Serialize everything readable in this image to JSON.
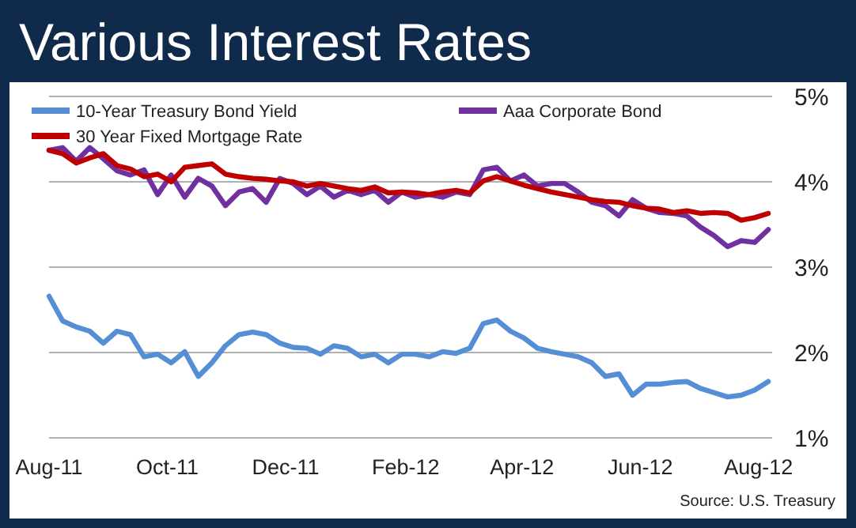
{
  "chart_data": {
    "type": "line",
    "title": "Various Interest Rates",
    "annotations": [
      "Source:  U.S. Treasury"
    ],
    "x": [
      "2011-08-01",
      "2011-08-08",
      "2011-08-15",
      "2011-08-22",
      "2011-08-29",
      "2011-09-05",
      "2011-09-12",
      "2011-09-19",
      "2011-09-26",
      "2011-10-03",
      "2011-10-10",
      "2011-10-17",
      "2011-10-24",
      "2011-10-31",
      "2011-11-07",
      "2011-11-14",
      "2011-11-21",
      "2011-11-28",
      "2011-12-05",
      "2011-12-12",
      "2011-12-19",
      "2011-12-26",
      "2012-01-02",
      "2012-01-09",
      "2012-01-16",
      "2012-01-23",
      "2012-01-30",
      "2012-02-06",
      "2012-02-13",
      "2012-02-20",
      "2012-02-27",
      "2012-03-05",
      "2012-03-12",
      "2012-03-19",
      "2012-03-26",
      "2012-04-02",
      "2012-04-09",
      "2012-04-16",
      "2012-04-23",
      "2012-04-30",
      "2012-05-07",
      "2012-05-14",
      "2012-05-21",
      "2012-05-28",
      "2012-06-04",
      "2012-06-11",
      "2012-06-18",
      "2012-06-25",
      "2012-07-02",
      "2012-07-09",
      "2012-07-16",
      "2012-07-23",
      "2012-07-30",
      "2012-08-06"
    ],
    "series": [
      {
        "name": "10-Year Treasury Bond Yield",
        "color": "#558ed5",
        "values": [
          2.66,
          2.37,
          2.3,
          2.25,
          2.11,
          2.25,
          2.21,
          1.95,
          1.98,
          1.88,
          2.01,
          1.72,
          1.88,
          2.08,
          2.21,
          2.24,
          2.21,
          2.11,
          2.06,
          2.05,
          1.98,
          2.08,
          2.05,
          1.95,
          1.98,
          1.88,
          1.98,
          1.98,
          1.95,
          2.01,
          1.99,
          2.05,
          2.34,
          2.38,
          2.25,
          2.17,
          2.05,
          2.01,
          1.98,
          1.95,
          1.88,
          1.72,
          1.75,
          1.5,
          1.63,
          1.63,
          1.65,
          1.66,
          1.58,
          1.53,
          1.48,
          1.5,
          1.56,
          1.66
        ]
      },
      {
        "name": "Aaa Corporate Bond",
        "color": "#7030a0",
        "values": [
          4.37,
          4.4,
          4.24,
          4.4,
          4.27,
          4.13,
          4.08,
          4.14,
          3.85,
          4.08,
          3.82,
          4.04,
          3.95,
          3.72,
          3.88,
          3.92,
          3.76,
          4.04,
          3.98,
          3.85,
          3.95,
          3.82,
          3.9,
          3.85,
          3.9,
          3.76,
          3.88,
          3.82,
          3.85,
          3.82,
          3.88,
          3.85,
          4.14,
          4.17,
          4.01,
          4.08,
          3.95,
          3.98,
          3.98,
          3.88,
          3.76,
          3.72,
          3.6,
          3.79,
          3.69,
          3.64,
          3.63,
          3.6,
          3.47,
          3.37,
          3.24,
          3.31,
          3.29,
          3.44
        ]
      },
      {
        "name": "30 Year Fixed Mortgage Rate",
        "color": "#c00000",
        "values": [
          4.37,
          4.33,
          4.22,
          4.28,
          4.33,
          4.19,
          4.15,
          4.06,
          4.09,
          4.0,
          4.17,
          4.19,
          4.21,
          4.09,
          4.06,
          4.04,
          4.03,
          4.01,
          4.0,
          3.95,
          3.98,
          3.95,
          3.92,
          3.9,
          3.94,
          3.87,
          3.88,
          3.87,
          3.85,
          3.88,
          3.9,
          3.87,
          4.01,
          4.06,
          4.01,
          3.96,
          3.92,
          3.88,
          3.85,
          3.82,
          3.79,
          3.77,
          3.76,
          3.72,
          3.69,
          3.68,
          3.64,
          3.66,
          3.63,
          3.64,
          3.63,
          3.55,
          3.58,
          3.63
        ]
      }
    ],
    "xlim": [
      "2011-08-01",
      "2012-08-08"
    ],
    "xticks": [
      {
        "value": "2011-08-01",
        "label": "Aug-11"
      },
      {
        "value": "2011-10-01",
        "label": "Oct-11"
      },
      {
        "value": "2011-12-01",
        "label": "Dec-11"
      },
      {
        "value": "2012-02-01",
        "label": "Feb-12"
      },
      {
        "value": "2012-04-01",
        "label": "Apr-12"
      },
      {
        "value": "2012-06-01",
        "label": "Jun-12"
      },
      {
        "value": "2012-08-01",
        "label": "Aug-12"
      }
    ],
    "ylim": [
      1,
      5
    ],
    "yticks": [
      {
        "value": 1,
        "label": "1%"
      },
      {
        "value": 2,
        "label": "2%"
      },
      {
        "value": 3,
        "label": "3%"
      },
      {
        "value": 4,
        "label": "4%"
      },
      {
        "value": 5,
        "label": "5%"
      }
    ],
    "grid": "y",
    "legend": "top",
    "marker": "none",
    "line_style": "solid"
  }
}
